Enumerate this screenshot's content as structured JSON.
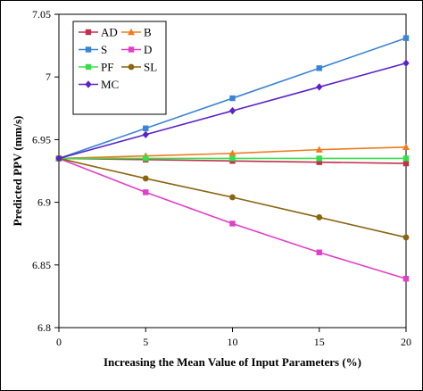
{
  "chart_data": {
    "type": "line",
    "xlabel": "Increasing the Mean Value of Input Parameters (%)",
    "ylabel": "Predicted PPV (mm/s)",
    "x": [
      0,
      5,
      10,
      15,
      20
    ],
    "xlim": [
      0,
      20
    ],
    "ylim": [
      6.8,
      7.05
    ],
    "xticks": [
      "0",
      "5",
      "10",
      "15",
      "20"
    ],
    "yticks": [
      "6.8",
      "6.85",
      "6.9",
      "6.95",
      "7",
      "7.05"
    ],
    "grid": false,
    "legend_position": "top-left",
    "series": [
      {
        "name": "AD",
        "color": "#c0304a",
        "marker": "square",
        "values": [
          6.935,
          6.934,
          6.933,
          6.932,
          6.931
        ]
      },
      {
        "name": "B",
        "color": "#f07a1e",
        "marker": "triangle",
        "values": [
          6.935,
          6.937,
          6.939,
          6.942,
          6.944
        ]
      },
      {
        "name": "S",
        "color": "#3a84d6",
        "marker": "square",
        "values": [
          6.935,
          6.959,
          6.983,
          7.007,
          7.031
        ]
      },
      {
        "name": "D",
        "color": "#e040c8",
        "marker": "square",
        "values": [
          6.935,
          6.908,
          6.883,
          6.86,
          6.839
        ]
      },
      {
        "name": "PF",
        "color": "#33e04a",
        "marker": "square",
        "values": [
          6.935,
          6.935,
          6.935,
          6.935,
          6.935
        ]
      },
      {
        "name": "SL",
        "color": "#8b6410",
        "marker": "circle",
        "values": [
          6.935,
          6.919,
          6.904,
          6.888,
          6.872
        ]
      },
      {
        "name": "MC",
        "color": "#5a22c8",
        "marker": "diamond",
        "values": [
          6.935,
          6.954,
          6.973,
          6.992,
          7.011
        ]
      }
    ]
  }
}
